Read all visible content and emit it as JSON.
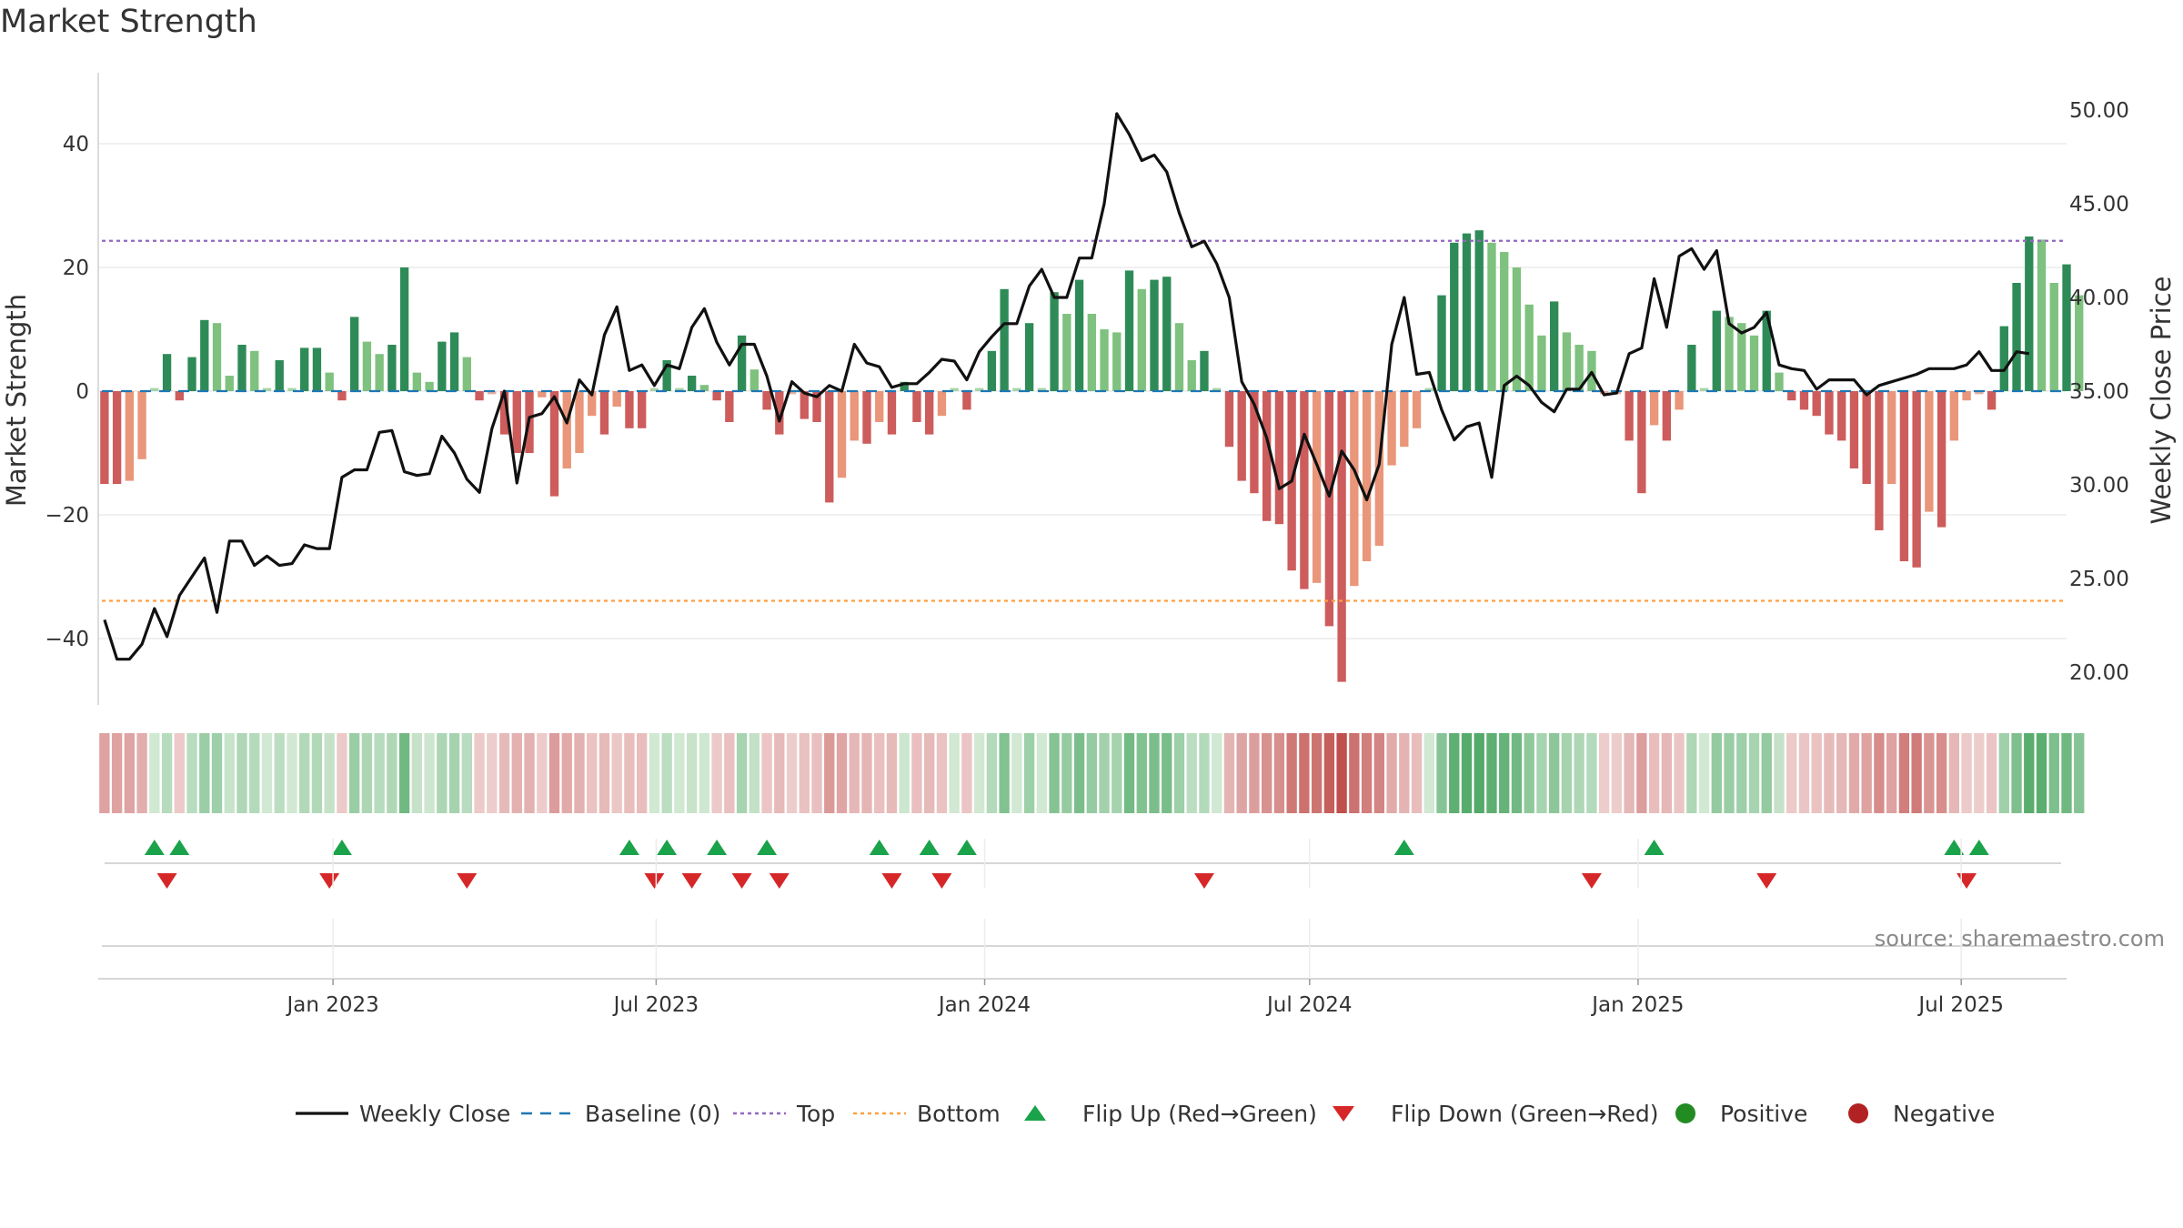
{
  "title": "Market Strength",
  "source": "source: sharemaestro.com",
  "colors": {
    "strong_green": "#2e8b57",
    "light_green": "#7fc17f",
    "strong_red": "#cd5c5c",
    "light_red": "#e9967a",
    "price_line": "#111111",
    "baseline": "#1f77b4",
    "top": "#9467bd",
    "bottom": "#ff9f40",
    "flip_up": "#1aa34a",
    "flip_down": "#d62728",
    "positive": "#228b22",
    "negative": "#b22222"
  },
  "chart_data": {
    "type": "bar",
    "title": "Market Strength",
    "ylabel_left": "Market Strength",
    "ylabel_right": "Weekly Close Price",
    "ylim_left": [
      -50,
      50
    ],
    "yticks_left": [
      {
        "value": 40,
        "label": "40"
      },
      {
        "value": 20,
        "label": "20"
      },
      {
        "value": 0,
        "label": "0"
      },
      {
        "value": -20,
        "label": "−20"
      },
      {
        "value": -40,
        "label": "−40"
      }
    ],
    "ylim_right": [
      18.5,
      51.5
    ],
    "yticks_right": [
      {
        "value": 50,
        "label": "50.00"
      },
      {
        "value": 45,
        "label": "45.00"
      },
      {
        "value": 40,
        "label": "40.00"
      },
      {
        "value": 35,
        "label": "35.00"
      },
      {
        "value": 30,
        "label": "30.00"
      },
      {
        "value": 25,
        "label": "25.00"
      },
      {
        "value": 20,
        "label": "20.00"
      }
    ],
    "start_date": "2022-08-26",
    "x_range_weeks": [
      -0.5,
      157
    ],
    "xticks": [
      {
        "date": "2023-01-01",
        "label": "Jan 2023"
      },
      {
        "date": "2023-07-01",
        "label": "Jul 2023"
      },
      {
        "date": "2024-01-01",
        "label": "Jan 2024"
      },
      {
        "date": "2024-07-01",
        "label": "Jul 2024"
      },
      {
        "date": "2025-01-01",
        "label": "Jan 2025"
      },
      {
        "date": "2025-07-01",
        "label": "Jul 2025"
      }
    ],
    "top_threshold": 24.3,
    "bottom_threshold": -33.9,
    "baseline": 0,
    "strength": [
      -15,
      -15,
      -14.5,
      -11,
      0.5,
      6,
      -1.5,
      5.5,
      11.5,
      11,
      2.5,
      7.5,
      6.5,
      0.5,
      5,
      0.5,
      7,
      7,
      3,
      -1.5,
      12,
      8,
      6,
      7.5,
      20,
      3,
      1.5,
      8,
      9.5,
      5.5,
      -1.5,
      -0.5,
      -7,
      -10,
      -10,
      -1,
      -17,
      -12.5,
      -10,
      -4,
      -7,
      -2.5,
      -6,
      -6,
      0.5,
      5,
      0.5,
      2.5,
      1,
      -1.5,
      -5,
      9,
      3.5,
      -3,
      -7,
      -0.5,
      -4.5,
      -5,
      -18,
      -14,
      -8,
      -8.5,
      -5,
      -7,
      1.5,
      -5,
      -7,
      -4,
      0.5,
      -3,
      0.5,
      6.5,
      16.5,
      0.5,
      11,
      0.5,
      16,
      12.5,
      18,
      12.5,
      10,
      9.5,
      19.5,
      16.5,
      18,
      18.5,
      11,
      5,
      6.5,
      0.5,
      -9,
      -14.5,
      -16.5,
      -21,
      -21.5,
      -29,
      -32,
      -31,
      -38,
      -47,
      -31.5,
      -27.5,
      -25,
      -12,
      -9,
      -6,
      0.5,
      15.5,
      24,
      25.5,
      26,
      24,
      22.5,
      20,
      14,
      9,
      14.5,
      9.5,
      7.5,
      6.5,
      -0.5,
      -0.5,
      -8,
      -16.5,
      -5.5,
      -8,
      -3,
      7.5,
      0.5,
      13,
      12,
      11,
      9,
      13,
      3,
      -1.5,
      -3,
      -4,
      -7,
      -8,
      -12.5,
      -15,
      -22.5,
      -15,
      -27.5,
      -28.5,
      -19.5,
      -22,
      -8,
      -1.5,
      -0.5,
      -3,
      10.5,
      17.5,
      25,
      24.5,
      17.5,
      20.5,
      15.5
    ],
    "price": [
      22.8,
      20.7,
      20.7,
      21.5,
      23.4,
      21.9,
      24.1,
      25.1,
      26.1,
      23.2,
      27,
      27,
      25.7,
      26.2,
      25.7,
      25.8,
      26.8,
      26.6,
      26.6,
      30.4,
      30.8,
      30.8,
      32.8,
      32.9,
      30.7,
      30.5,
      30.6,
      32.6,
      31.7,
      30.3,
      29.6,
      33,
      35,
      30.1,
      33.6,
      33.8,
      34.7,
      33.3,
      35.6,
      34.8,
      38,
      39.5,
      36.1,
      36.4,
      35.3,
      36.4,
      36.2,
      38.4,
      39.4,
      37.6,
      36.4,
      37.5,
      37.5,
      35.8,
      33.4,
      35.5,
      34.9,
      34.7,
      35.3,
      35,
      37.5,
      36.5,
      36.3,
      35.2,
      35.4,
      35.4,
      36,
      36.7,
      36.6,
      35.6,
      37.1,
      37.9,
      38.6,
      38.6,
      40.6,
      41.5,
      40,
      40,
      42.1,
      42.1,
      45,
      49.8,
      48.7,
      47.3,
      47.6,
      46.7,
      44.5,
      42.7,
      43,
      41.8,
      40,
      35.5,
      34.3,
      32.5,
      29.8,
      30.2,
      32.7,
      31.1,
      29.4,
      31.8,
      30.8,
      29.2,
      31.1,
      37.5,
      40,
      35.9,
      36,
      34,
      32.4,
      33.1,
      33.3,
      30.4,
      35.3,
      35.8,
      35.3,
      34.4,
      33.9,
      35.1,
      35.1,
      36,
      34.8,
      34.9,
      37,
      37.3,
      41,
      38.4,
      42.2,
      42.6,
      41.5,
      42.5,
      38.6,
      38.1,
      38.4,
      39.2,
      36.4,
      36.2,
      36.1,
      35.1,
      35.6,
      35.6,
      35.6,
      34.8,
      35.3,
      35.5,
      35.7,
      35.9,
      36.2,
      36.2,
      36.2,
      36.4,
      37.1,
      36.1,
      36.1,
      37.1,
      37
    ]
  },
  "flip_up_weeks": [
    4,
    6,
    19,
    42,
    45,
    49,
    53,
    62,
    66,
    69,
    104,
    124,
    148,
    150
  ],
  "flip_down_weeks": [
    5,
    18,
    29,
    44,
    47,
    51,
    54,
    63,
    67,
    88,
    119,
    133,
    149
  ],
  "legend": [
    {
      "label": "Weekly Close",
      "symbol": "line"
    },
    {
      "label": "Baseline (0)",
      "symbol": "dash"
    },
    {
      "label": "Top",
      "symbol": "dot-purple"
    },
    {
      "label": "Bottom",
      "symbol": "dot-orange"
    },
    {
      "label": "Flip Up (Red→Green)",
      "symbol": "tri-up"
    },
    {
      "label": "Flip Down (Green→Red)",
      "symbol": "tri-down"
    },
    {
      "label": "Positive",
      "symbol": "circle-green"
    },
    {
      "label": "Negative",
      "symbol": "circle-red"
    }
  ]
}
